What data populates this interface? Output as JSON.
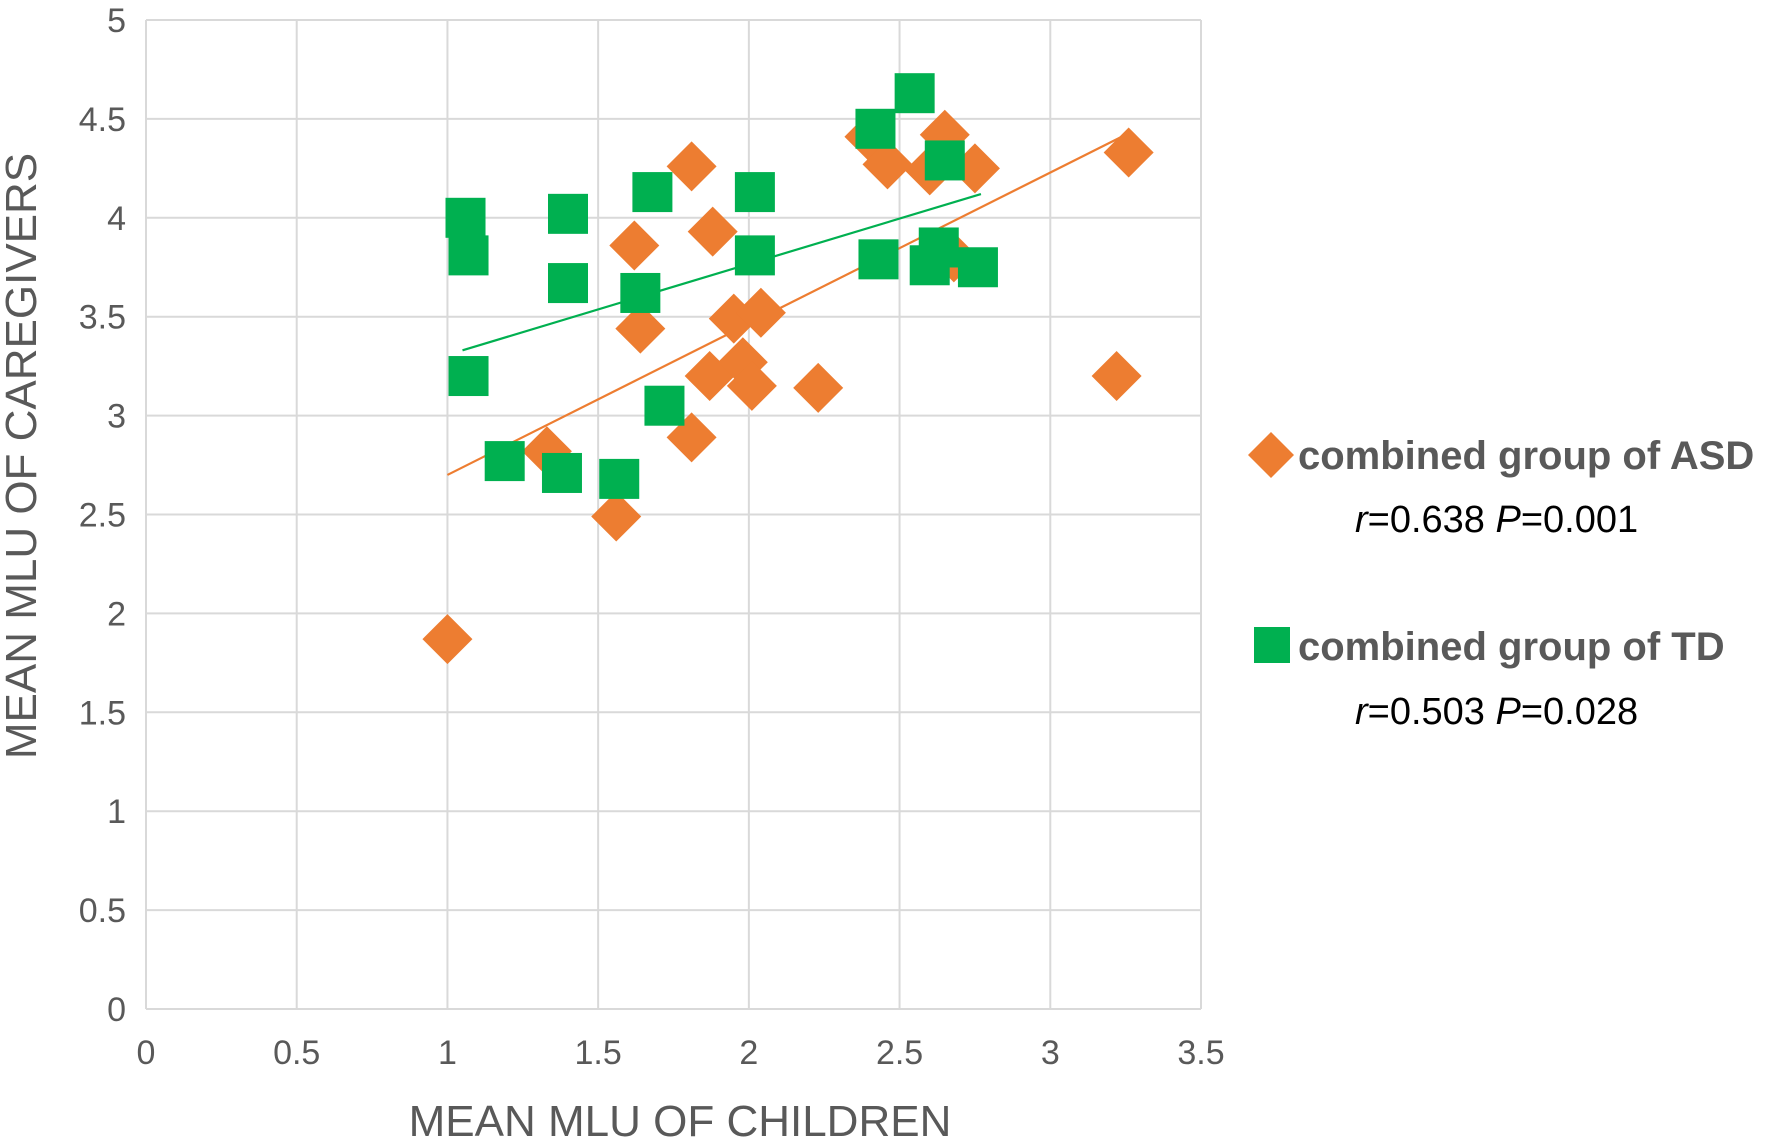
{
  "chart_data": {
    "type": "scatter",
    "title": "",
    "xlabel": "MEAN MLU OF CHILDREN",
    "ylabel": "MEAN MLU OF CAREGIVERS",
    "xlim": [
      0,
      3.5
    ],
    "ylim": [
      0,
      5
    ],
    "x_ticks": [
      "0",
      "0.5",
      "1",
      "1.5",
      "2",
      "2.5",
      "3",
      "3.5"
    ],
    "y_ticks": [
      "0",
      "0.5",
      "1",
      "1.5",
      "2",
      "2.5",
      "3",
      "3.5",
      "4",
      "4.5",
      "5"
    ],
    "grid": true,
    "legend_position": "right",
    "series": [
      {
        "name": "combined group of ASD",
        "marker": "diamond",
        "color": "#ED7D31",
        "stat_r_label": "r",
        "stat_r_value": "=0.638 ",
        "stat_p_label": "P",
        "stat_p_value": "=0.001",
        "trendline": {
          "x": [
            1.0,
            3.25
          ],
          "y": [
            2.7,
            4.42
          ]
        },
        "points": [
          {
            "x": 1.0,
            "y": 1.87
          },
          {
            "x": 1.33,
            "y": 2.82
          },
          {
            "x": 1.56,
            "y": 2.49
          },
          {
            "x": 1.62,
            "y": 3.86
          },
          {
            "x": 1.64,
            "y": 3.44
          },
          {
            "x": 1.81,
            "y": 4.26
          },
          {
            "x": 1.81,
            "y": 2.89
          },
          {
            "x": 1.87,
            "y": 3.2
          },
          {
            "x": 1.88,
            "y": 3.93
          },
          {
            "x": 1.95,
            "y": 3.49
          },
          {
            "x": 1.98,
            "y": 3.27
          },
          {
            "x": 2.01,
            "y": 3.15
          },
          {
            "x": 2.04,
            "y": 3.52
          },
          {
            "x": 2.23,
            "y": 3.14
          },
          {
            "x": 2.4,
            "y": 4.41
          },
          {
            "x": 2.46,
            "y": 4.27
          },
          {
            "x": 2.6,
            "y": 4.24
          },
          {
            "x": 2.65,
            "y": 4.42
          },
          {
            "x": 2.68,
            "y": 3.8
          },
          {
            "x": 2.75,
            "y": 4.25
          },
          {
            "x": 3.22,
            "y": 3.2
          },
          {
            "x": 3.26,
            "y": 4.33
          }
        ]
      },
      {
        "name": "combined group of TD",
        "marker": "square",
        "color": "#00B050",
        "stat_r_label": "r",
        "stat_r_value": "=0.503 ",
        "stat_p_label": "P",
        "stat_p_value": "=0.028",
        "trendline": {
          "x": [
            1.05,
            2.77
          ],
          "y": [
            3.33,
            4.12
          ]
        },
        "points": [
          {
            "x": 1.06,
            "y": 4.0
          },
          {
            "x": 1.07,
            "y": 3.81
          },
          {
            "x": 1.07,
            "y": 3.2
          },
          {
            "x": 1.19,
            "y": 2.77
          },
          {
            "x": 1.38,
            "y": 2.71
          },
          {
            "x": 1.4,
            "y": 4.02
          },
          {
            "x": 1.4,
            "y": 3.67
          },
          {
            "x": 1.57,
            "y": 2.68
          },
          {
            "x": 1.64,
            "y": 3.62
          },
          {
            "x": 1.68,
            "y": 4.13
          },
          {
            "x": 1.72,
            "y": 3.05
          },
          {
            "x": 2.02,
            "y": 4.13
          },
          {
            "x": 2.02,
            "y": 3.81
          },
          {
            "x": 2.42,
            "y": 4.45
          },
          {
            "x": 2.43,
            "y": 3.79
          },
          {
            "x": 2.55,
            "y": 4.63
          },
          {
            "x": 2.6,
            "y": 3.76
          },
          {
            "x": 2.63,
            "y": 3.85
          },
          {
            "x": 2.65,
            "y": 4.29
          },
          {
            "x": 2.76,
            "y": 3.75
          }
        ]
      }
    ]
  }
}
